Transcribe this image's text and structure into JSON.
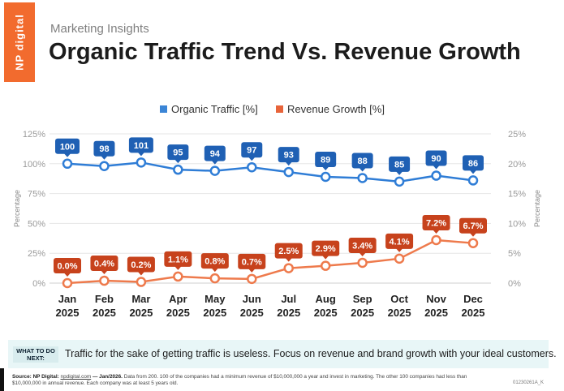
{
  "header": {
    "brand": "NP digital",
    "kicker": "Marketing Insights",
    "title": "Organic Traffic Trend Vs. Revenue Growth"
  },
  "footer": {
    "next_label": "WHAT TO DO NEXT:",
    "next_text": "Traffic for the sake of getting traffic is useless. Focus on revenue and brand growth with your ideal customers.",
    "source_label": "Source: NP Digital:",
    "source_link": "npdigital.com",
    "source_date": "— Jan/2026.",
    "source_body": "Data from 200. 100 of the companies had a minimum revenue of $10,000,000 a year and invest in marketing. The other 100 companies had less than $10,000,000 in annual revenue. Each company was at least 5 years old.",
    "code": "01230261A_K"
  },
  "colors": {
    "traffic": "#1f60b4",
    "traffic_line": "#2f7dd6",
    "revenue": "#c7421c",
    "revenue_line": "#ee7a4c",
    "grid": "#e6e6e6"
  },
  "chart_data": {
    "type": "line",
    "categories": [
      "Jan 2025",
      "Feb 2025",
      "Mar 2025",
      "Apr 2025",
      "May 2025",
      "Jun 2025",
      "Jul 2025",
      "Aug 2025",
      "Sep 2025",
      "Oct 2025",
      "Nov 2025",
      "Dec 2025"
    ],
    "series": [
      {
        "name": "Organic Traffic [%]",
        "axis": "left",
        "values": [
          100,
          98,
          101,
          95,
          94,
          97,
          93,
          89,
          88,
          85,
          90,
          86
        ],
        "labels": [
          "100",
          "98",
          "101",
          "95",
          "94",
          "97",
          "93",
          "89",
          "88",
          "85",
          "90",
          "86"
        ]
      },
      {
        "name": "Revenue Growth [%]",
        "axis": "right",
        "values": [
          0.0,
          0.4,
          0.2,
          1.1,
          0.8,
          0.7,
          2.5,
          2.9,
          3.4,
          4.1,
          7.2,
          6.7
        ],
        "labels": [
          "0.0%",
          "0.4%",
          "0.2%",
          "1.1%",
          "0.8%",
          "0.7%",
          "2.5%",
          "2.9%",
          "3.4%",
          "4.1%",
          "7.2%",
          "6.7%"
        ]
      }
    ],
    "y_left": {
      "label": "Percentage",
      "ticks": [
        "0%",
        "25%",
        "50%",
        "75%",
        "100%",
        "125%"
      ],
      "range": [
        0,
        125
      ]
    },
    "y_right": {
      "label": "Percentage",
      "ticks": [
        "0%",
        "5%",
        "10%",
        "15%",
        "20%",
        "25%"
      ],
      "range": [
        0,
        25
      ]
    },
    "legend_position": "top-center",
    "grid": true
  }
}
